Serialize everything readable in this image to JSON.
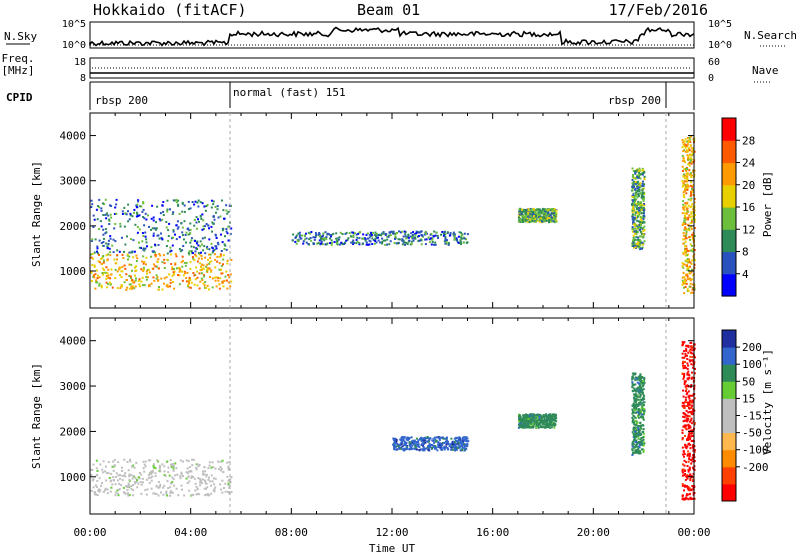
{
  "header": {
    "station": "Hokkaido (fitACF)",
    "beam": "Beam 01",
    "date": "17/Feb/2016"
  },
  "panels": {
    "nsky_label": "N.Sky",
    "nsky_ticks": [
      "10^5",
      "10^0"
    ],
    "nsearch_label": "N.Search",
    "freq_label_1": "Freq.",
    "freq_label_2": "[MHz]",
    "freq_ticks": [
      "18",
      "8"
    ],
    "nave_ticks": [
      "60",
      "0"
    ],
    "nave_label": "Nave",
    "cpid_label": "CPID",
    "cpid_segments": [
      {
        "label": "rbsp 200",
        "from": "00:00",
        "to": "05:35"
      },
      {
        "label": "normal (fast) 151",
        "from": "05:35",
        "to": "22:45"
      },
      {
        "label": "rbsp 200",
        "from": "22:45",
        "to": "24:00"
      }
    ]
  },
  "colors": {
    "power_scale": [
      "#0000ff",
      "#2a52be",
      "#2e8b57",
      "#6cbf3c",
      "#e8d000",
      "#ff9a00",
      "#ff5a00",
      "#ff0000"
    ],
    "velocity_scale": [
      "#ff0000",
      "#ff4000",
      "#ff8c00",
      "#ffb84d",
      "#bfbfbf",
      "#bfbfbf",
      "#66cc33",
      "#2e8b57",
      "#3366cc",
      "#1f2fa0"
    ]
  },
  "chart_data": [
    {
      "type": "heatmap",
      "name": "power",
      "ylabel": "Slant Range [km]",
      "xlabel": "",
      "x_range": [
        "00:00",
        "24:00"
      ],
      "ylim": [
        180,
        4500
      ],
      "y_ticks": [
        1000,
        2000,
        3000,
        4000
      ],
      "colorbar": {
        "label": "Power [dB]",
        "range": [
          0,
          32
        ],
        "ticks": [
          4,
          8,
          12,
          16,
          20,
          24,
          28
        ]
      },
      "echo_regions": [
        {
          "time": [
            "00:00",
            "05:35"
          ],
          "range_km": [
            600,
            1400
          ],
          "value_db": 24
        },
        {
          "time": [
            "00:00",
            "05:35"
          ],
          "range_km": [
            1400,
            2600
          ],
          "value_db": 12
        },
        {
          "time": [
            "08:00",
            "15:00"
          ],
          "range_km": [
            1600,
            1900
          ],
          "value_db": 10
        },
        {
          "time": [
            "17:00",
            "18:30"
          ],
          "range_km": [
            2100,
            2400
          ],
          "value_db": 14
        },
        {
          "time": [
            "21:30",
            "22:00"
          ],
          "range_km": [
            1500,
            3300
          ],
          "value_db": 16
        },
        {
          "time": [
            "23:30",
            "24:00"
          ],
          "range_km": [
            500,
            4000
          ],
          "value_db": 24
        }
      ]
    },
    {
      "type": "heatmap",
      "name": "velocity",
      "ylabel": "Slant Range [km]",
      "xlabel": "Time UT",
      "x_ticks": [
        "00:00",
        "04:00",
        "08:00",
        "12:00",
        "16:00",
        "20:00",
        "00:00"
      ],
      "ylim": [
        180,
        4500
      ],
      "y_ticks": [
        1000,
        2000,
        3000,
        4000
      ],
      "colorbar": {
        "label": "Velocity [m s⁻¹]",
        "ticks": [
          "200",
          "100",
          "50",
          "15",
          "-15",
          "-50",
          "-100",
          "-200"
        ]
      },
      "echo_regions": [
        {
          "time": [
            "00:00",
            "05:35"
          ],
          "range_km": [
            600,
            1400
          ],
          "value_ms": 0
        },
        {
          "time": [
            "12:00",
            "15:00"
          ],
          "range_km": [
            1600,
            1900
          ],
          "value_ms": 120
        },
        {
          "time": [
            "17:00",
            "18:30"
          ],
          "range_km": [
            2100,
            2400
          ],
          "value_ms": 60
        },
        {
          "time": [
            "21:30",
            "22:00"
          ],
          "range_km": [
            1500,
            3300
          ],
          "value_ms": 60
        },
        {
          "time": [
            "23:30",
            "24:00"
          ],
          "range_km": [
            500,
            4000
          ],
          "value_ms": -150
        }
      ]
    }
  ]
}
